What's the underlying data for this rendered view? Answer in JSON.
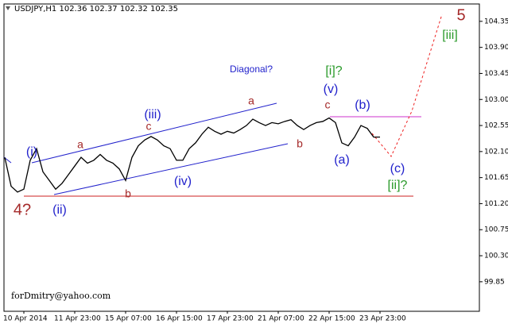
{
  "chart_data": {
    "type": "line",
    "header": "USDJPY,H1  102.36 102.37 102.32 102.35",
    "color": "#000000",
    "categories": [
      null,
      null,
      null,
      "10 Apr 2014",
      null,
      null,
      null,
      null,
      null,
      null,
      null,
      "11 Apr 23:00",
      null,
      null,
      null,
      null,
      null,
      null,
      null,
      "15 Apr 07:00",
      null,
      null,
      null,
      null,
      null,
      null,
      null,
      "16 Apr 15:00",
      null,
      null,
      null,
      null,
      null,
      null,
      null,
      "17 Apr 23:00",
      null,
      null,
      null,
      null,
      null,
      null,
      null,
      "21 Apr 07:00",
      null,
      null,
      null,
      null,
      null,
      null,
      null,
      "22 Apr 15:00",
      null,
      null,
      null,
      null,
      null,
      null,
      null,
      "23 Apr 23:00"
    ],
    "values": [
      102.0,
      101.5,
      101.4,
      101.45,
      101.95,
      102.15,
      101.75,
      101.6,
      101.45,
      101.55,
      101.7,
      101.85,
      102.0,
      101.9,
      101.95,
      102.05,
      101.95,
      101.9,
      101.8,
      101.6,
      102.0,
      102.2,
      102.3,
      102.36,
      102.3,
      102.2,
      102.15,
      101.95,
      101.95,
      102.15,
      102.25,
      102.4,
      102.52,
      102.45,
      102.4,
      102.45,
      102.42,
      102.48,
      102.55,
      102.66,
      102.6,
      102.55,
      102.6,
      102.58,
      102.62,
      102.65,
      102.55,
      102.48,
      102.55,
      102.6,
      102.62,
      102.68,
      102.6,
      102.25,
      102.2,
      102.35,
      102.55,
      102.5,
      102.35,
      102.35
    ],
    "ylim": [
      99.34,
      104.65
    ],
    "yticks": [
      104.35,
      {
        "value": 103.9,
        "label": "103.90"
      },
      103.45,
      {
        "value": 103,
        "label": "103.00"
      },
      102.55,
      {
        "value": 102.1,
        "label": "102.10"
      },
      101.65,
      {
        "value": 101.2,
        "label": "101.20"
      },
      100.75,
      {
        "value": 100.3,
        "label": "100.30"
      },
      99.85
    ],
    "annotations": [
      {
        "text": "4?",
        "color": "#a52a2a"
      },
      {
        "text": "(i)",
        "color": "#2222cc"
      },
      {
        "text": "(ii)",
        "color": "#2222cc"
      },
      {
        "text": "a",
        "color": "#a52a2a"
      },
      {
        "text": "b",
        "color": "#a52a2a"
      },
      {
        "text": "c",
        "color": "#a52a2a"
      },
      {
        "text": "(iii)",
        "color": "#2222cc"
      },
      {
        "text": "(iv)",
        "color": "#2222cc"
      },
      {
        "text": "a",
        "color": "#a52a2a"
      },
      {
        "text": "b",
        "color": "#a52a2a"
      },
      {
        "text": "c",
        "color": "#a52a2a"
      },
      {
        "text": "(v)",
        "color": "#2222cc"
      },
      {
        "text": "[i]?",
        "color": "#2a9a2a"
      },
      {
        "text": "(a)",
        "color": "#2222cc"
      },
      {
        "text": "(b)",
        "color": "#2222cc"
      },
      {
        "text": "(c)",
        "color": "#2222cc"
      },
      {
        "text": "[ii]?",
        "color": "#2a9a2a"
      },
      {
        "text": "[iii]",
        "color": "#2a9a2a"
      },
      {
        "text": "5",
        "color": "#a52a2a"
      },
      {
        "text": "Diagonal?",
        "color": "#2222cc"
      }
    ],
    "watermark": "forDmitry@yahoo.com"
  }
}
